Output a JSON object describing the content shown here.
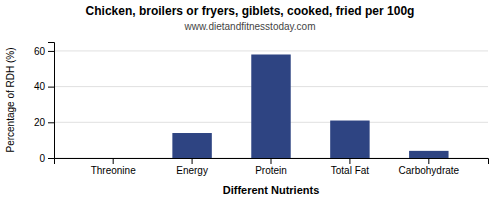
{
  "chart_data": {
    "type": "bar",
    "title": "Chicken, broilers or fryers, giblets, cooked, fried per 100g",
    "subtitle": "www.dietandfitnesstoday.com",
    "xlabel": "Different Nutrients",
    "ylabel": "Percentage of RDH (%)",
    "categories": [
      "Threonine",
      "Energy",
      "Protein",
      "Total Fat",
      "Carbohydrate"
    ],
    "values": [
      0,
      14,
      58,
      21,
      4
    ],
    "color": "#2e4482",
    "ylim": [
      0,
      65
    ],
    "yticks": [
      0,
      20,
      40,
      60
    ],
    "grid": true
  }
}
